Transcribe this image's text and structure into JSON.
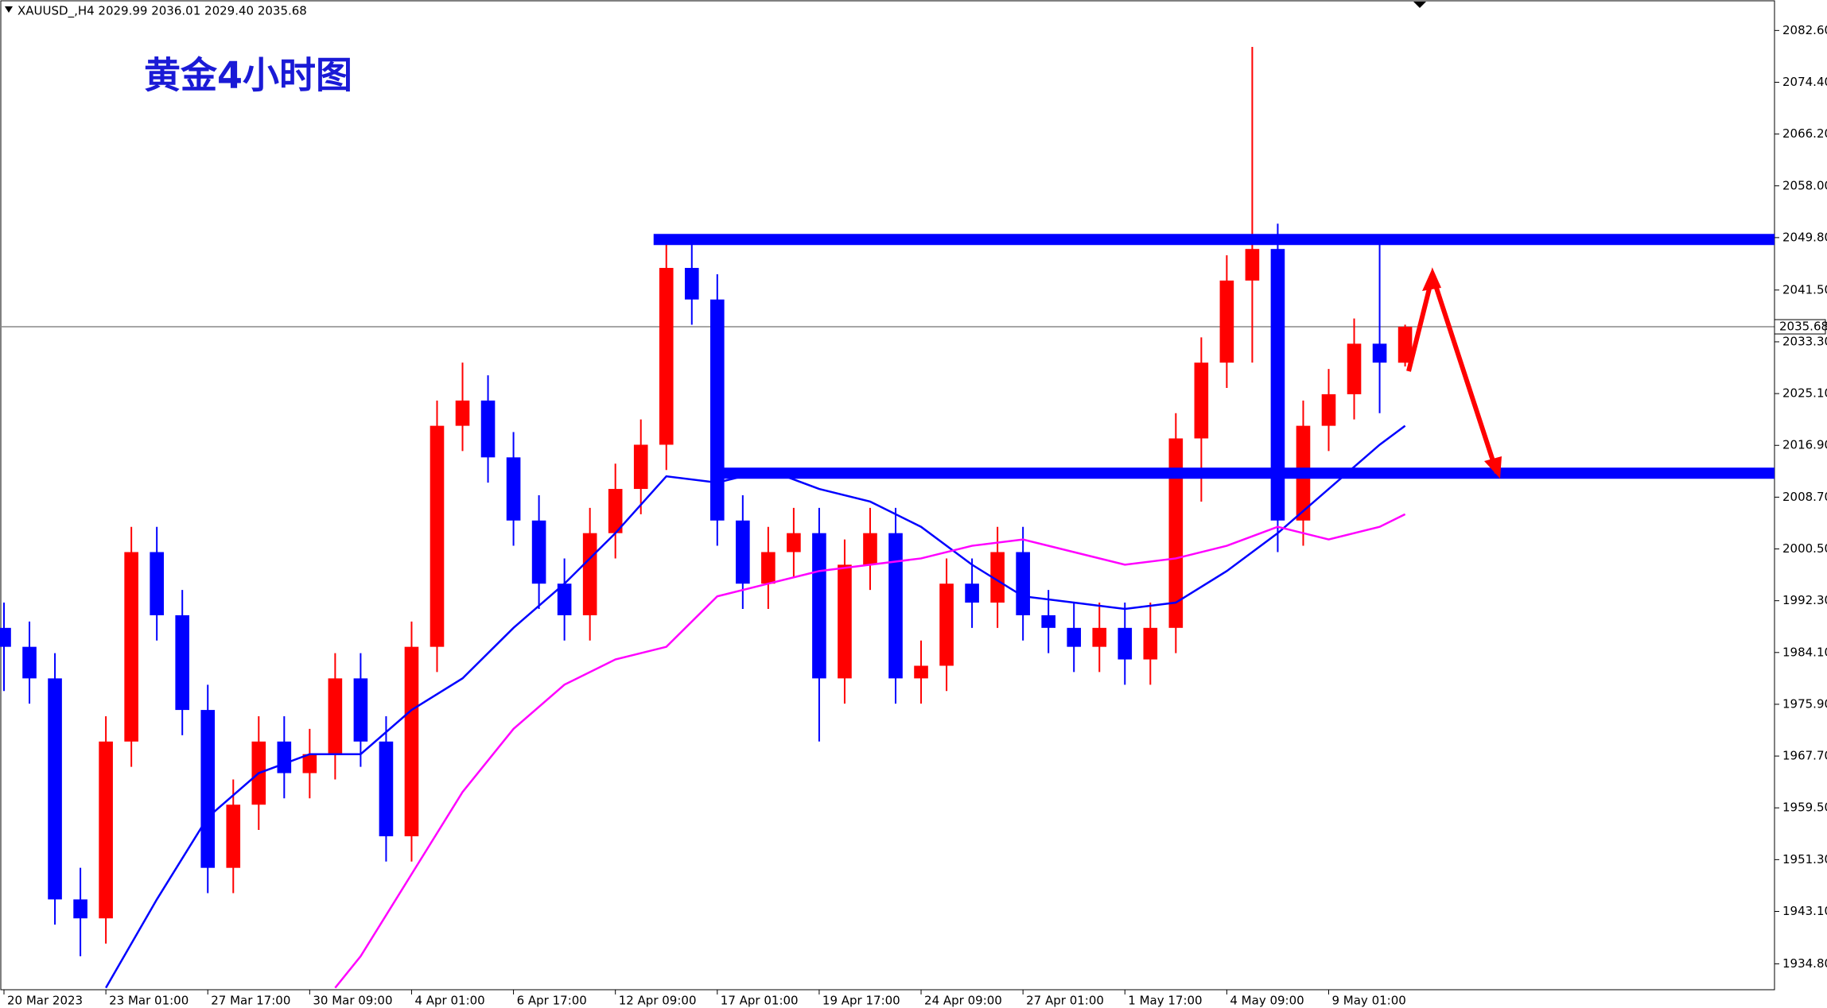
{
  "chart_data": {
    "type": "candlestick",
    "header": "XAUUSD_,H4  2029.99 2036.01 2029.40 2035.68",
    "title": "黄金4小时图",
    "up_color": "#ff0000",
    "down_color": "#0000ff",
    "x": [
      0,
      4,
      8,
      12,
      16,
      20,
      24,
      28,
      32,
      36,
      40,
      44,
      48,
      52,
      56,
      60,
      64,
      68,
      72,
      76,
      80,
      84,
      88,
      92,
      96,
      100,
      104,
      108,
      112,
      116,
      120,
      124,
      128,
      132,
      136,
      140,
      144,
      148,
      152,
      156,
      160,
      164,
      168,
      172,
      176,
      180,
      184,
      188,
      192,
      196,
      200,
      204,
      208,
      212,
      216,
      220
    ],
    "open": [
      1988,
      1985,
      1980,
      1945,
      1942,
      1970,
      2000,
      1990,
      1975,
      1950,
      1960,
      1970,
      1965,
      1968,
      1980,
      1970,
      1955,
      1985,
      2020,
      2024,
      2015,
      2005,
      1995,
      1990,
      2003,
      2010,
      2017,
      2045,
      2040,
      2005,
      1995,
      2000,
      2003,
      1980,
      1998,
      2003,
      1980,
      1982,
      1995,
      1992,
      2000,
      1990,
      1988,
      1985,
      1988,
      1983,
      1988,
      2018,
      2030,
      2043,
      2048,
      2005,
      2020,
      2025,
      2033,
      2029.99
    ],
    "high": [
      1992,
      1989,
      1984,
      1950,
      1974,
      2004,
      2004,
      1994,
      1979,
      1964,
      1974,
      1974,
      1972,
      1984,
      1984,
      1974,
      1989,
      2024,
      2030,
      2028,
      2019,
      2009,
      1999,
      2007,
      2014,
      2021,
      2049,
      2049,
      2044,
      2009,
      2004,
      2007,
      2007,
      2002,
      2007,
      2007,
      1986,
      1999,
      1999,
      2004,
      2004,
      1994,
      1992,
      1992,
      1992,
      1992,
      2022,
      2034,
      2047,
      2080,
      2052,
      2024,
      2029,
      2037,
      2049,
      2036.01
    ],
    "low": [
      1978,
      1976,
      1941,
      1936,
      1938,
      1966,
      1986,
      1971,
      1946,
      1946,
      1956,
      1961,
      1961,
      1964,
      1966,
      1951,
      1951,
      1981,
      2016,
      2011,
      2001,
      1991,
      1986,
      1986,
      1999,
      2006,
      2013,
      2036,
      2001,
      1991,
      1991,
      1996,
      1970,
      1976,
      1994,
      1976,
      1976,
      1978,
      1988,
      1988,
      1986,
      1984,
      1981,
      1981,
      1979,
      1979,
      1984,
      2008,
      2026,
      2030,
      2000,
      2001,
      2016,
      2021,
      2022,
      2029.4
    ],
    "close": [
      1985,
      1980,
      1945,
      1942,
      1970,
      2000,
      1990,
      1975,
      1950,
      1960,
      1970,
      1965,
      1968,
      1980,
      1970,
      1955,
      1985,
      2020,
      2024,
      2015,
      2005,
      1995,
      1990,
      2003,
      2010,
      2017,
      2045,
      2040,
      2005,
      1995,
      2000,
      2003,
      1980,
      1998,
      2003,
      1980,
      1982,
      1995,
      1992,
      2000,
      1990,
      1988,
      1985,
      1988,
      1983,
      1988,
      2018,
      2030,
      2043,
      2048,
      2005,
      2020,
      2025,
      2033,
      2030,
      2035.68
    ],
    "lines": [
      {
        "color": "#0000ff",
        "x": [
          16,
          24,
          32,
          40,
          48,
          56,
          64,
          72,
          80,
          88,
          96,
          104,
          112,
          120,
          128,
          136,
          144,
          152,
          160,
          168,
          176,
          184,
          192,
          200,
          208,
          216,
          220
        ],
        "values": [
          1931,
          1945,
          1958,
          1965,
          1968,
          1968,
          1975,
          1980,
          1988,
          1995,
          2003,
          2012,
          2011,
          2013,
          2010,
          2008,
          2004,
          1998,
          1993,
          1992,
          1991,
          1992,
          1997,
          2003,
          2010,
          2017,
          2020
        ]
      },
      {
        "color": "#ff00ff",
        "x": [
          52,
          56,
          64,
          72,
          80,
          88,
          96,
          104,
          112,
          120,
          128,
          136,
          144,
          152,
          160,
          168,
          176,
          184,
          192,
          200,
          208,
          216,
          220
        ],
        "values": [
          1931,
          1936,
          1949,
          1962,
          1972,
          1979,
          1983,
          1985,
          1993,
          1995,
          1997,
          1998,
          1999,
          2001,
          2002,
          2000,
          1998,
          1999,
          2001,
          2004,
          2002,
          2004,
          2006
        ]
      }
    ],
    "levels": [
      {
        "value": 2049.5,
        "x_start": 102,
        "color": "#0000ff"
      },
      {
        "value": 2012.5,
        "x_start": 113,
        "color": "#0000ff"
      }
    ],
    "last_price": 2035.68,
    "xlim": [
      -0.5,
      278
    ],
    "ylim": [
      1930.7,
      2087.3
    ],
    "xticks": [
      {
        "value": 0,
        "label": "20 Mar 2023"
      },
      {
        "value": 16,
        "label": "23 Mar 01:00"
      },
      {
        "value": 32,
        "label": "27 Mar 17:00"
      },
      {
        "value": 48,
        "label": "30 Mar 09:00"
      },
      {
        "value": 64,
        "label": "4 Apr 01:00"
      },
      {
        "value": 80,
        "label": "6 Apr 17:00"
      },
      {
        "value": 96,
        "label": "12 Apr 09:00"
      },
      {
        "value": 112,
        "label": "17 Apr 01:00"
      },
      {
        "value": 128,
        "label": "19 Apr 17:00"
      },
      {
        "value": 144,
        "label": "24 Apr 09:00"
      },
      {
        "value": 160,
        "label": "27 Apr 01:00"
      },
      {
        "value": 176,
        "label": "1 May 17:00"
      },
      {
        "value": 192,
        "label": "4 May 09:00"
      },
      {
        "value": 208,
        "label": "9 May 01:00"
      }
    ],
    "yticks": [
      {
        "value": 2082.6,
        "label": "2082.60"
      },
      {
        "value": 2074.4,
        "label": "2074.40"
      },
      {
        "value": 2066.2,
        "label": "2066.20"
      },
      {
        "value": 2058,
        "label": "2058.00"
      },
      {
        "value": 2049.8,
        "label": "2049.80"
      },
      {
        "value": 2041.5,
        "label": "2041.50"
      },
      {
        "value": 2033.3,
        "label": "2033.30"
      },
      {
        "value": 2025.1,
        "label": "2025.10"
      },
      {
        "value": 2016.9,
        "label": "2016.90"
      },
      {
        "value": 2008.7,
        "label": "2008.70"
      },
      {
        "value": 2000.5,
        "label": "2000.50"
      },
      {
        "value": 1992.3,
        "label": "1992.30"
      },
      {
        "value": 1984.1,
        "label": "1984.10"
      },
      {
        "value": 1975.9,
        "label": "1975.90"
      },
      {
        "value": 1967.7,
        "label": "1967.70"
      },
      {
        "value": 1959.5,
        "label": "1959.50"
      },
      {
        "value": 1951.3,
        "label": "1951.30"
      },
      {
        "value": 1943.1,
        "label": "1943.10"
      },
      {
        "value": 1934.8,
        "label": "1934.80"
      }
    ]
  }
}
